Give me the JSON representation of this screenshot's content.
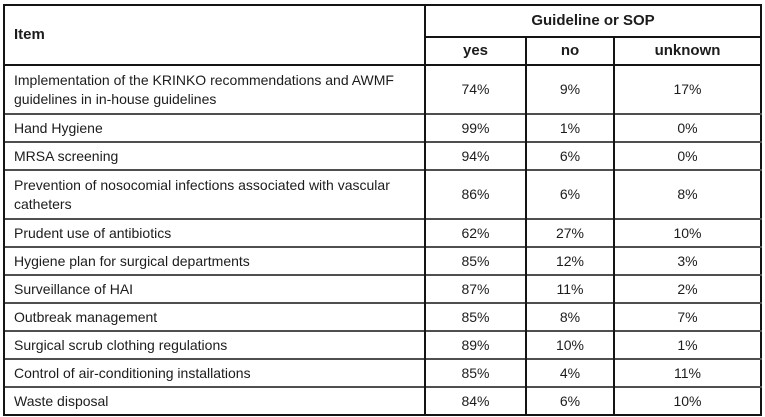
{
  "colors": {
    "border_dark": "#141414",
    "border_row": "#4f4f4f",
    "text": "#1c1c1c",
    "background": "#ffffff"
  },
  "table": {
    "header": {
      "item_label": "Item",
      "group_label": "Guideline or SOP",
      "columns": [
        "yes",
        "no",
        "unknown"
      ]
    },
    "rows": [
      {
        "item": "Implementation of the KRINKO recommendations and AWMF guidelines in in-house guidelines",
        "yes": "74%",
        "no": "9%",
        "unknown": "17%"
      },
      {
        "item": "Hand Hygiene",
        "yes": "99%",
        "no": "1%",
        "unknown": "0%"
      },
      {
        "item": "MRSA screening",
        "yes": "94%",
        "no": "6%",
        "unknown": "0%"
      },
      {
        "item": "Prevention of nosocomial infections associated with vascular catheters",
        "yes": "86%",
        "no": "6%",
        "unknown": "8%"
      },
      {
        "item": "Prudent use of antibiotics",
        "yes": "62%",
        "no": "27%",
        "unknown": "10%"
      },
      {
        "item": "Hygiene plan for surgical departments",
        "yes": "85%",
        "no": "12%",
        "unknown": "3%"
      },
      {
        "item": "Surveillance of HAI",
        "yes": "87%",
        "no": "11%",
        "unknown": "2%"
      },
      {
        "item": "Outbreak management",
        "yes": "85%",
        "no": "8%",
        "unknown": "7%"
      },
      {
        "item": "Surgical scrub clothing regulations",
        "yes": "89%",
        "no": "10%",
        "unknown": "1%"
      },
      {
        "item": "Control of air-conditioning installations",
        "yes": "85%",
        "no": "4%",
        "unknown": "11%"
      },
      {
        "item": "Waste disposal",
        "yes": "84%",
        "no": "6%",
        "unknown": "10%"
      }
    ]
  },
  "chart_data": {
    "type": "table",
    "title": "Guideline or SOP",
    "categories": [
      "Implementation of the KRINKO recommendations and AWMF guidelines in in-house guidelines",
      "Hand Hygiene",
      "MRSA screening",
      "Prevention of nosocomial infections associated with vascular catheters",
      "Prudent use of antibiotics",
      "Hygiene plan for surgical departments",
      "Surveillance of HAI",
      "Outbreak management",
      "Surgical scrub clothing regulations",
      "Control of air-conditioning installations",
      "Waste disposal"
    ],
    "series": [
      {
        "name": "yes",
        "values": [
          74,
          99,
          94,
          86,
          62,
          85,
          87,
          85,
          89,
          85,
          84
        ]
      },
      {
        "name": "no",
        "values": [
          9,
          1,
          6,
          6,
          27,
          12,
          11,
          8,
          10,
          4,
          6
        ]
      },
      {
        "name": "unknown",
        "values": [
          17,
          0,
          0,
          8,
          10,
          3,
          2,
          7,
          1,
          11,
          10
        ]
      }
    ],
    "units": "percent"
  }
}
